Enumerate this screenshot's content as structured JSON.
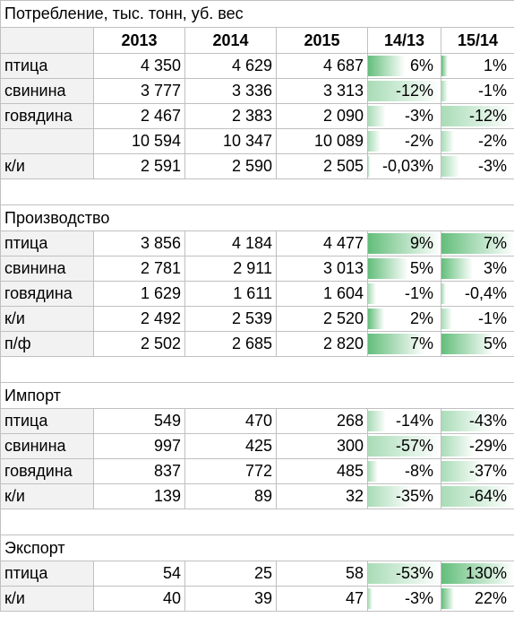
{
  "consumption": {
    "title": "Потребление, тыс. тонн, уб. вес",
    "headers": [
      "2013",
      "2014",
      "2015",
      "14/13",
      "15/14"
    ],
    "rows": [
      {
        "label": "птица",
        "v2013": "4 350",
        "v2014": "4 629",
        "v2015": "4 687",
        "g1413": "6%",
        "g1514": "1%",
        "g1413_value": 6,
        "g1514_value": 1
      },
      {
        "label": "свинина",
        "v2013": "3 777",
        "v2014": "3 336",
        "v2015": "3 313",
        "g1413": "-12%",
        "g1514": "-1%",
        "g1413_value": -12,
        "g1514_value": -1
      },
      {
        "label": "говядина",
        "v2013": "2 467",
        "v2014": "2 383",
        "v2015": "2 090",
        "g1413": "-3%",
        "g1514": "-12%",
        "g1413_value": -3,
        "g1514_value": -12
      },
      {
        "label": "",
        "v2013": "10 594",
        "v2014": "10 347",
        "v2015": "10 089",
        "g1413": "-2%",
        "g1514": "-2%",
        "g1413_value": -2,
        "g1514_value": -2
      },
      {
        "label": "к/и",
        "v2013": "2 591",
        "v2014": "2 590",
        "v2015": "2 505",
        "g1413": "-0,03%",
        "g1514": "-3%",
        "g1413_value": -0.03,
        "g1514_value": -3
      }
    ]
  },
  "production": {
    "title": "Производство",
    "rows": [
      {
        "label": "птица",
        "v2013": "3 856",
        "v2014": "4 184",
        "v2015": "4 477",
        "g1413": "9%",
        "g1514": "7%",
        "g1413_value": 9,
        "g1514_value": 7
      },
      {
        "label": "свинина",
        "v2013": "2 781",
        "v2014": "2 911",
        "v2015": "3 013",
        "g1413": "5%",
        "g1514": "3%",
        "g1413_value": 5,
        "g1514_value": 3
      },
      {
        "label": "говядина",
        "v2013": "1 629",
        "v2014": "1 611",
        "v2015": "1 604",
        "g1413": "-1%",
        "g1514": "-0,4%",
        "g1413_value": -1,
        "g1514_value": -0.4
      },
      {
        "label": "к/и",
        "v2013": "2 492",
        "v2014": "2 539",
        "v2015": "2 520",
        "g1413": "2%",
        "g1514": "-1%",
        "g1413_value": 2,
        "g1514_value": -1
      },
      {
        "label": "п/ф",
        "v2013": "2 502",
        "v2014": "2 685",
        "v2015": "2 820",
        "g1413": "7%",
        "g1514": "5%",
        "g1413_value": 7,
        "g1514_value": 5
      }
    ]
  },
  "import": {
    "title": "Импорт",
    "rows": [
      {
        "label": "птица",
        "v2013": "549",
        "v2014": "470",
        "v2015": "268",
        "g1413": "-14%",
        "g1514": "-43%",
        "g1413_value": -14,
        "g1514_value": -43
      },
      {
        "label": "свинина",
        "v2013": "997",
        "v2014": "425",
        "v2015": "300",
        "g1413": "-57%",
        "g1514": "-29%",
        "g1413_value": -57,
        "g1514_value": -29
      },
      {
        "label": "говядина",
        "v2013": "837",
        "v2014": "772",
        "v2015": "485",
        "g1413": "-8%",
        "g1514": "-37%",
        "g1413_value": -8,
        "g1514_value": -37
      },
      {
        "label": "к/и",
        "v2013": "139",
        "v2014": "89",
        "v2015": "32",
        "g1413": "-35%",
        "g1514": "-64%",
        "g1413_value": -35,
        "g1514_value": -64
      }
    ]
  },
  "export": {
    "title": "Экспорт",
    "rows": [
      {
        "label": "птица",
        "v2013": "54",
        "v2014": "25",
        "v2015": "58",
        "g1413": "-53%",
        "g1514": "130%",
        "g1413_value": -53,
        "g1514_value": 130
      },
      {
        "label": "к/и",
        "v2013": "40",
        "v2014": "39",
        "v2015": "47",
        "g1413": "-3%",
        "g1514": "22%",
        "g1413_value": -3,
        "g1514_value": 22
      }
    ]
  },
  "colors": {
    "bar": "#63be7b",
    "label_bg": "#f2f2f2",
    "grid": "#c0c0c0"
  }
}
